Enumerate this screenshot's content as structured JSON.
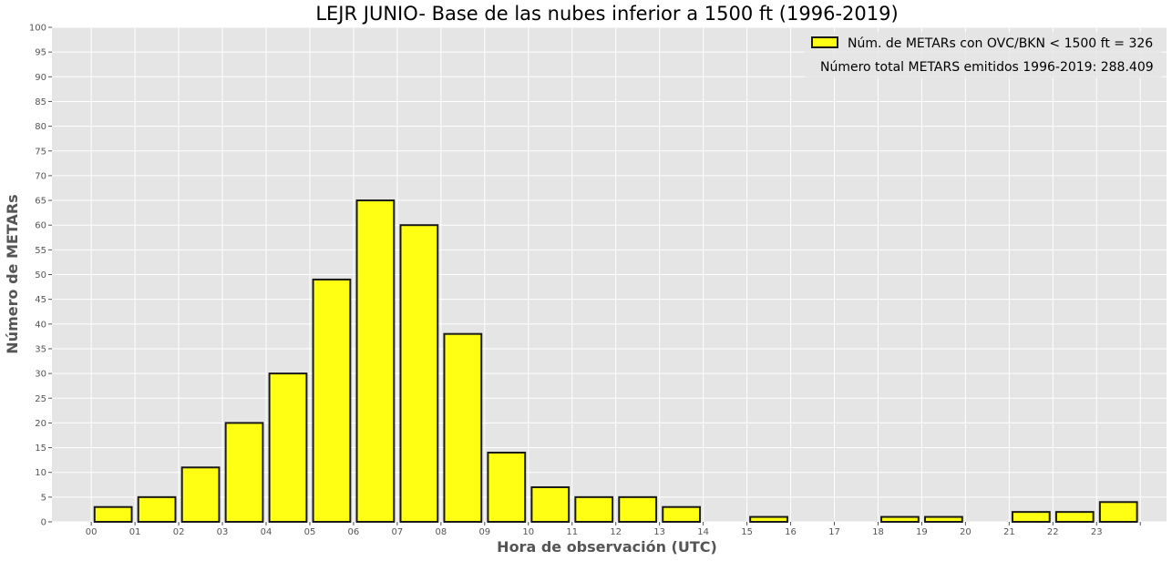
{
  "chart_data": {
    "type": "bar",
    "title": "LEJR JUNIO- Base de las nubes inferior a 1500 ft (1996-2019)",
    "xlabel": "Hora de observación (UTC)",
    "ylabel": "Número de METARs",
    "categories": [
      "00",
      "01",
      "02",
      "03",
      "04",
      "05",
      "06",
      "07",
      "08",
      "09",
      "10",
      "11",
      "12",
      "13",
      "14",
      "15",
      "16",
      "17",
      "18",
      "19",
      "20",
      "21",
      "22",
      "23"
    ],
    "series": [
      {
        "name": "Núm. de METARs con OVC/BKN < 1500 ft = 326",
        "values": [
          3,
          5,
          11,
          20,
          30,
          49,
          65,
          60,
          38,
          14,
          7,
          5,
          5,
          3,
          0,
          1,
          0,
          0,
          1,
          1,
          0,
          2,
          2,
          4
        ]
      }
    ],
    "annotation": "Número total METARS emitidos 1996-2019: 288.409",
    "ylim": [
      0,
      100
    ],
    "yticks": [
      0,
      5,
      10,
      15,
      20,
      25,
      30,
      35,
      40,
      45,
      50,
      55,
      60,
      65,
      70,
      75,
      80,
      85,
      90,
      95,
      100
    ],
    "grid": true,
    "legend_position": "top-right",
    "colors": {
      "bar_fill": "#ffff14",
      "bar_edge": "#1a1a1a",
      "plot_background": "#e5e5e5",
      "grid": "#ffffff"
    }
  }
}
